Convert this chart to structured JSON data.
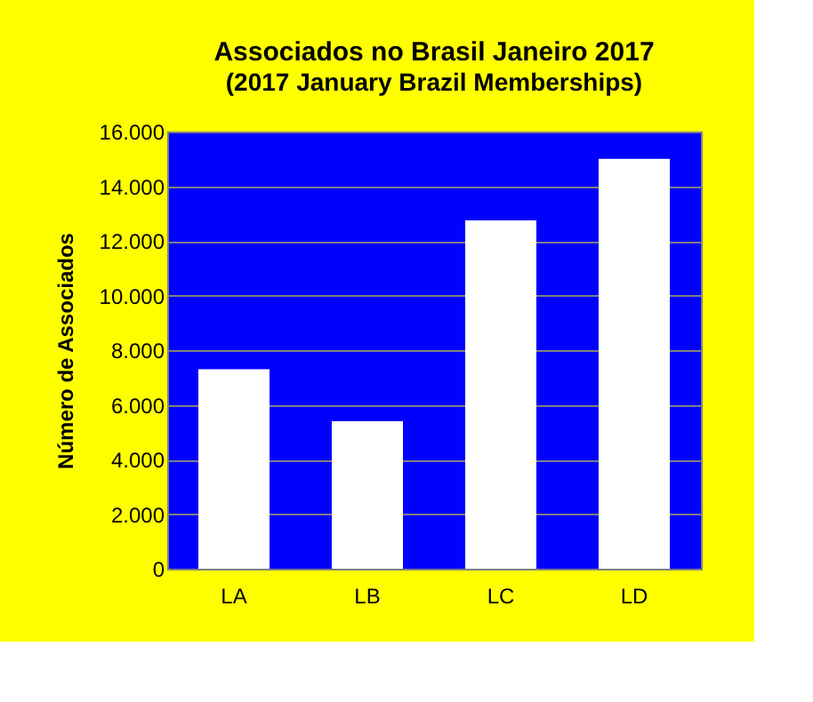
{
  "chart_data": {
    "type": "bar",
    "title": "Associados no Brasil  Janeiro  2017",
    "subtitle": "(2017  January Brazil Memberships)",
    "ylabel": "Número de Associados",
    "categories": [
      "LA",
      "LB",
      "LC",
      "LD"
    ],
    "values": [
      7300,
      5400,
      12750,
      15000
    ],
    "color": "#ffffff",
    "ylim": [
      0,
      16000
    ],
    "yticks": [
      0,
      {
        "value": 2000,
        "label": "2.000"
      },
      {
        "value": 4000,
        "label": "4.000"
      },
      {
        "value": 6000,
        "label": "6.000"
      },
      {
        "value": 8000,
        "label": "8.000"
      },
      {
        "value": 10000,
        "label": "10.000"
      },
      {
        "value": 12000,
        "label": "12.000"
      },
      {
        "value": 14000,
        "label": "14.000"
      },
      {
        "value": 16000,
        "label": "16.000"
      }
    ],
    "grid": "y"
  }
}
